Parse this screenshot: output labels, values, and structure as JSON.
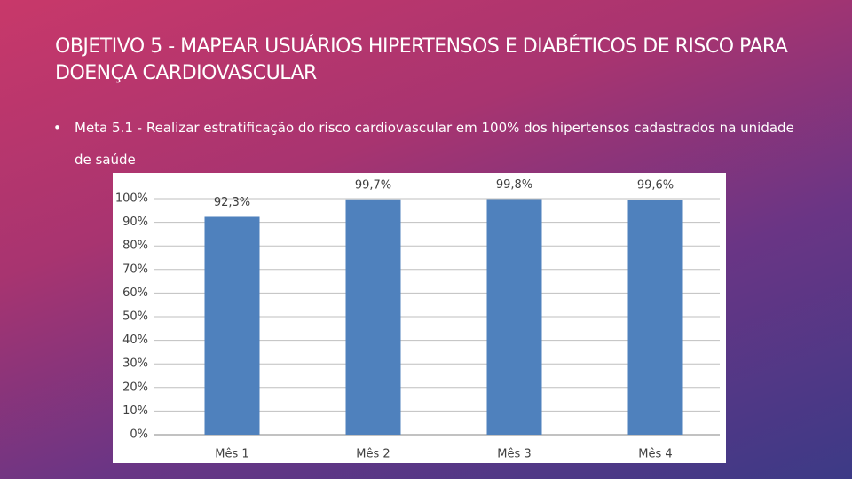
{
  "title": "OBJETIVO 5 - MAPEAR USUÁRIOS HIPERTENSOS E DIABÉTICOS DE RISCO PARA DOENÇA CARDIOVASCULAR",
  "bullet": "Meta 5.1 - Realizar estratificação do risco cardiovascular em 100% dos hipertensos cadastrados na unidade de saúde",
  "chart_data": {
    "type": "bar",
    "categories": [
      "Mês 1",
      "Mês 2",
      "Mês 3",
      "Mês 4"
    ],
    "values": [
      92.3,
      99.7,
      99.8,
      99.6
    ],
    "value_labels": [
      "92,3%",
      "99,7%",
      "99,8%",
      "99,6%"
    ],
    "color": "#4f81bd",
    "ylim": [
      0,
      100
    ],
    "yticks": [
      {
        "value": 0,
        "label": "0%"
      },
      {
        "value": 10,
        "label": "10%"
      },
      {
        "value": 20,
        "label": "20%"
      },
      {
        "value": 30,
        "label": "30%"
      },
      {
        "value": 40,
        "label": "40%"
      },
      {
        "value": 50,
        "label": "50%"
      },
      {
        "value": 60,
        "label": "60%"
      },
      {
        "value": 70,
        "label": "70%"
      },
      {
        "value": 80,
        "label": "80%"
      },
      {
        "value": 90,
        "label": "90%"
      },
      {
        "value": 100,
        "label": "100%"
      }
    ],
    "grid": true
  }
}
